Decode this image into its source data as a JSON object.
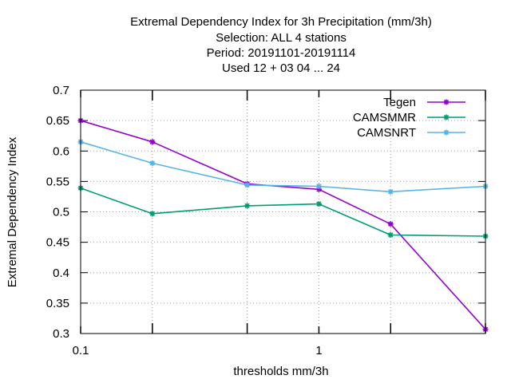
{
  "chart_data": {
    "type": "line",
    "title_lines": [
      "Extremal Dependency Index  for 3h Precipitation (mm/3h)",
      "Selection: ALL      4 stations",
      "Period: 20191101-20191114",
      "Used  12 + 03 04 ... 24"
    ],
    "xlabel": "thresholds mm/3h",
    "ylabel": "Extremal Dependency Index",
    "x_scale": "log",
    "xlim": [
      0.1,
      5
    ],
    "ylim": [
      0.3,
      0.7
    ],
    "x_tick_labels": [
      {
        "value": 0.1,
        "label": "0.1"
      },
      {
        "value": 1,
        "label": "1"
      }
    ],
    "x_ticks_unlabeled": [
      0.2,
      0.5,
      2,
      5
    ],
    "y_ticks": [
      {
        "value": 0.3,
        "label": "0.3"
      },
      {
        "value": 0.35,
        "label": "0.35"
      },
      {
        "value": 0.4,
        "label": "0.4"
      },
      {
        "value": 0.45,
        "label": "0.45"
      },
      {
        "value": 0.5,
        "label": "0.5"
      },
      {
        "value": 0.55,
        "label": "0.55"
      },
      {
        "value": 0.6,
        "label": "0.6"
      },
      {
        "value": 0.65,
        "label": "0.65"
      },
      {
        "value": 0.7,
        "label": "0.7"
      }
    ],
    "grid": true,
    "legend_position": "top-right",
    "x": [
      0.1,
      0.2,
      0.5,
      1,
      2,
      5
    ],
    "series": [
      {
        "name": "Tegen",
        "color": "#9400d3",
        "values": [
          0.65,
          0.615,
          0.546,
          0.537,
          0.48,
          0.307
        ]
      },
      {
        "name": "CAMSMMR",
        "color": "#009e73",
        "values": [
          0.539,
          0.497,
          0.51,
          0.513,
          0.462,
          0.46
        ]
      },
      {
        "name": "CAMSNRT",
        "color": "#56b4e9",
        "values": [
          0.615,
          0.58,
          0.544,
          0.542,
          0.533,
          0.542
        ]
      }
    ]
  }
}
